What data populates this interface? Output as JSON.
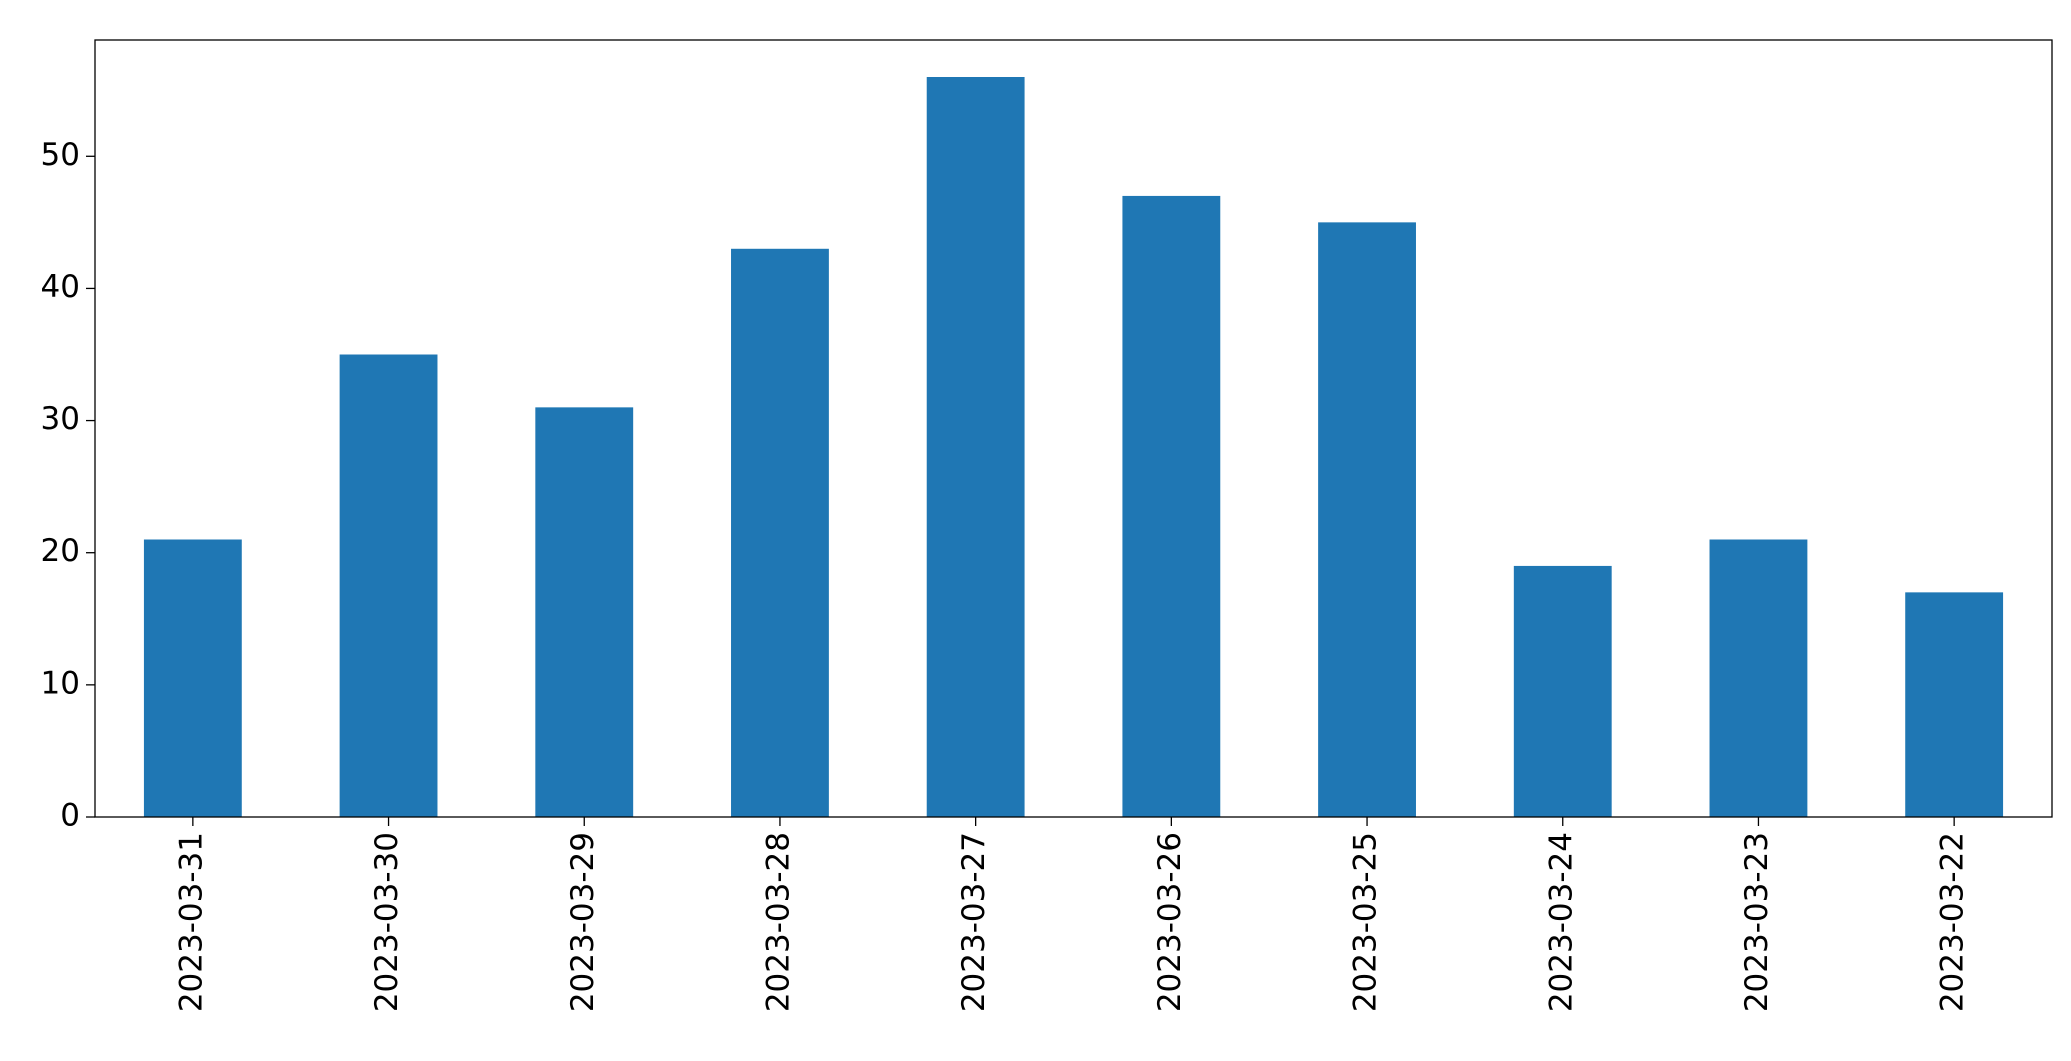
{
  "chart_data": {
    "type": "bar",
    "categories": [
      "2023-03-31",
      "2023-03-30",
      "2023-03-29",
      "2023-03-28",
      "2023-03-27",
      "2023-03-26",
      "2023-03-25",
      "2023-03-24",
      "2023-03-23",
      "2023-03-22"
    ],
    "values": [
      21,
      35,
      31,
      43,
      56,
      47,
      45,
      19,
      21,
      17
    ],
    "color": "#1f77b4",
    "ylim": [
      0,
      58.8
    ],
    "yticks": [
      0,
      10,
      20,
      30,
      40,
      50
    ],
    "grid": false
  }
}
